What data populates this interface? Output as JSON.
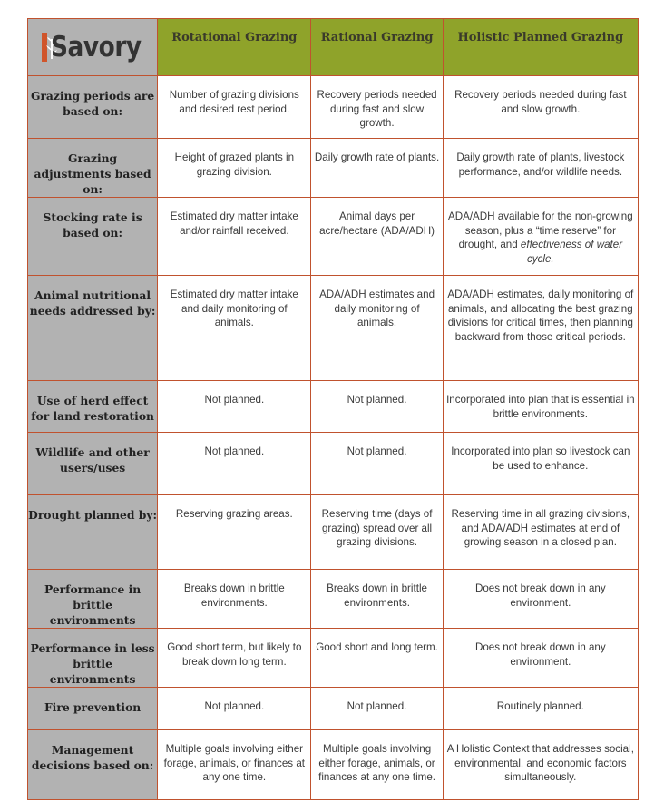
{
  "logo": {
    "text": "Savory"
  },
  "columns": [
    "Rotational Grazing",
    "Rational Grazing",
    "Holistic Planned Grazing"
  ],
  "rows": [
    {
      "label": "Grazing periods are based on:",
      "cells": [
        "Number of grazing divisions and desired rest period.",
        "Recovery periods needed during fast and slow growth.",
        "Recovery periods needed during fast and slow growth."
      ]
    },
    {
      "label": "Grazing adjustments based on:",
      "cells": [
        "Height of grazed plants in grazing division.",
        "Daily growth rate of plants.",
        "Daily growth rate of plants, livestock performance, and/or wildlife needs."
      ]
    },
    {
      "label": "Stocking rate is based on:",
      "cells": [
        "Estimated dry matter intake and/or rainfall received.",
        "Animal days per acre/hectare (ADA/ADH)",
        "ADA/ADH available for the non-growing season, plus a “time reserve” for drought, and"
      ],
      "cell_extra": "effectiveness of water cycle."
    },
    {
      "label": "Animal nutritional needs addressed by:",
      "cells": [
        "Estimated dry matter intake and daily monitoring of animals.",
        "ADA/ADH estimates and daily monitoring of animals.",
        "ADA/ADH estimates, daily monitoring of animals, and allocating the best grazing divisions for critical times, then planning backward from those critical periods."
      ]
    },
    {
      "label": "Use of herd effect for land restoration",
      "cells": [
        "Not planned.",
        "Not planned.",
        "Incorporated into plan that is essential in brittle environments."
      ]
    },
    {
      "label": "Wildlife and other users/uses",
      "cells": [
        "Not planned.",
        "Not planned.",
        "Incorporated into plan so livestock can be used to enhance."
      ]
    },
    {
      "label": "Drought planned by:",
      "cells": [
        "Reserving grazing areas.",
        "Reserving time (days of grazing) spread over all grazing divisions.",
        "Reserving time in all grazing divisions, and ADA/ADH estimates at end of growing season in a closed plan."
      ]
    },
    {
      "label": "Performance in brittle environments",
      "cells": [
        "Breaks down in brittle environments.",
        "Breaks down in brittle environments.",
        "Does not break down in any environment."
      ]
    },
    {
      "label": "Performance in less brittle environments",
      "cells": [
        "Good short term, but likely to break down long term.",
        "Good short and long term.",
        "Does not break down in any environment."
      ]
    },
    {
      "label": "Fire prevention",
      "cells": [
        "Not planned.",
        "Not planned.",
        "Routinely planned."
      ]
    },
    {
      "label": "Management decisions based on:",
      "cells": [
        "Multiple goals involving either forage, animals, or finances at any one time.",
        "Multiple goals involving either forage, animals, or finances at any one time.",
        "A Holistic Context that addresses social, environmental, and economic factors simultaneously."
      ]
    }
  ]
}
